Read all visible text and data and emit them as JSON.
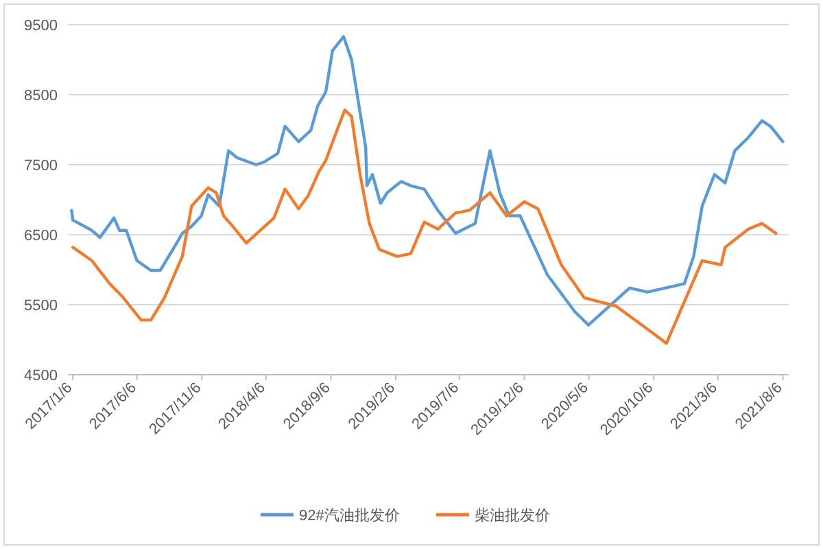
{
  "chart_data": {
    "type": "line",
    "ylim": [
      4500,
      9500
    ],
    "yticks": [
      4500,
      5500,
      6500,
      7500,
      8500,
      9500
    ],
    "xlim": [
      "2016-12-27",
      "2021-08-20"
    ],
    "xticks": [
      {
        "value": "2017-01-06",
        "label": "2017/1/6"
      },
      {
        "value": "2017-06-06",
        "label": "2017/6/6"
      },
      {
        "value": "2017-11-06",
        "label": "2017/11/6"
      },
      {
        "value": "2018-04-06",
        "label": "2018/4/6"
      },
      {
        "value": "2018-09-06",
        "label": "2018/9/6"
      },
      {
        "value": "2019-02-06",
        "label": "2019/2/6"
      },
      {
        "value": "2019-07-06",
        "label": "2019/7/6"
      },
      {
        "value": "2019-12-06",
        "label": "2019/12/6"
      },
      {
        "value": "2020-05-06",
        "label": "2020/5/6"
      },
      {
        "value": "2020-10-06",
        "label": "2020/10/6"
      },
      {
        "value": "2021-03-06",
        "label": "2021/3/6"
      },
      {
        "value": "2021-08-06",
        "label": "2021/8/6"
      }
    ],
    "grid": "y",
    "legend": "bottom",
    "marker": "none",
    "line_style": "solid",
    "series": [
      {
        "name": "92#汽油批发价",
        "color": "#5b9bd5",
        "x": [
          "2017-01-03",
          "2017-01-06",
          "2017-02-20",
          "2017-03-11",
          "2017-04-13",
          "2017-04-26",
          "2017-05-12",
          "2017-06-06",
          "2017-07-09",
          "2017-07-31",
          "2017-09-02",
          "2017-09-21",
          "2017-10-13",
          "2017-11-05",
          "2017-11-21",
          "2017-12-17",
          "2018-01-08",
          "2018-01-28",
          "2018-03-14",
          "2018-04-02",
          "2018-05-04",
          "2018-05-21",
          "2018-06-22",
          "2018-07-21",
          "2018-08-06",
          "2018-08-25",
          "2018-09-10",
          "2018-10-06",
          "2018-10-25",
          "2018-11-27",
          "2018-11-30",
          "2018-12-13",
          "2019-01-01",
          "2019-01-17",
          "2019-02-19",
          "2019-03-13",
          "2019-04-14",
          "2019-05-16",
          "2019-06-27",
          "2019-08-12",
          "2019-09-16",
          "2019-10-09",
          "2019-10-31",
          "2019-11-26",
          "2020-01-29",
          "2020-04-03",
          "2020-05-05",
          "2020-08-10",
          "2020-09-21",
          "2020-12-17",
          "2021-01-08",
          "2021-01-28",
          "2021-02-26",
          "2021-03-23",
          "2021-04-15",
          "2021-05-17",
          "2021-06-18",
          "2021-07-08",
          "2021-08-06"
        ],
        "values": [
          6850,
          6710,
          6560,
          6460,
          6740,
          6560,
          6560,
          6130,
          5990,
          5990,
          6320,
          6520,
          6620,
          6770,
          7070,
          6910,
          7700,
          7600,
          7500,
          7540,
          7660,
          8050,
          7830,
          7990,
          8340,
          8540,
          9130,
          9330,
          9000,
          7750,
          7200,
          7360,
          6950,
          7100,
          7260,
          7200,
          7150,
          6850,
          6520,
          6660,
          7700,
          7100,
          6770,
          6770,
          5930,
          5400,
          5210,
          5740,
          5680,
          5800,
          6190,
          6910,
          7360,
          7240,
          7700,
          7890,
          8130,
          8050,
          7830
        ]
      },
      {
        "name": "柴油批发价",
        "color": "#ed7d31",
        "x": [
          "2017-01-06",
          "2017-02-20",
          "2017-04-03",
          "2017-05-05",
          "2017-06-16",
          "2017-07-09",
          "2017-08-10",
          "2017-09-21",
          "2017-10-13",
          "2017-11-21",
          "2017-12-10",
          "2017-12-27",
          "2018-01-18",
          "2018-02-19",
          "2018-04-25",
          "2018-05-21",
          "2018-06-22",
          "2018-07-14",
          "2018-08-09",
          "2018-08-25",
          "2018-09-23",
          "2018-10-09",
          "2018-10-25",
          "2018-11-14",
          "2018-12-06",
          "2018-12-29",
          "2019-02-09",
          "2019-03-13",
          "2019-04-14",
          "2019-05-16",
          "2019-06-27",
          "2019-07-30",
          "2019-09-16",
          "2019-10-25",
          "2019-12-06",
          "2020-01-07",
          "2020-03-02",
          "2020-04-25",
          "2020-07-09",
          "2020-09-21",
          "2020-11-05",
          "2020-12-07",
          "2021-01-28",
          "2021-03-14",
          "2021-03-23",
          "2021-05-17",
          "2021-06-18",
          "2021-07-21"
        ],
        "values": [
          6320,
          6130,
          5800,
          5600,
          5280,
          5280,
          5600,
          6190,
          6910,
          7170,
          7100,
          6770,
          6620,
          6380,
          6740,
          7150,
          6870,
          7050,
          7400,
          7560,
          8030,
          8280,
          8190,
          7360,
          6660,
          6290,
          6190,
          6230,
          6680,
          6580,
          6810,
          6850,
          7100,
          6770,
          6970,
          6870,
          6070,
          5600,
          5480,
          5150,
          4950,
          5400,
          6130,
          6070,
          6320,
          6580,
          6660,
          6520
        ]
      }
    ]
  }
}
